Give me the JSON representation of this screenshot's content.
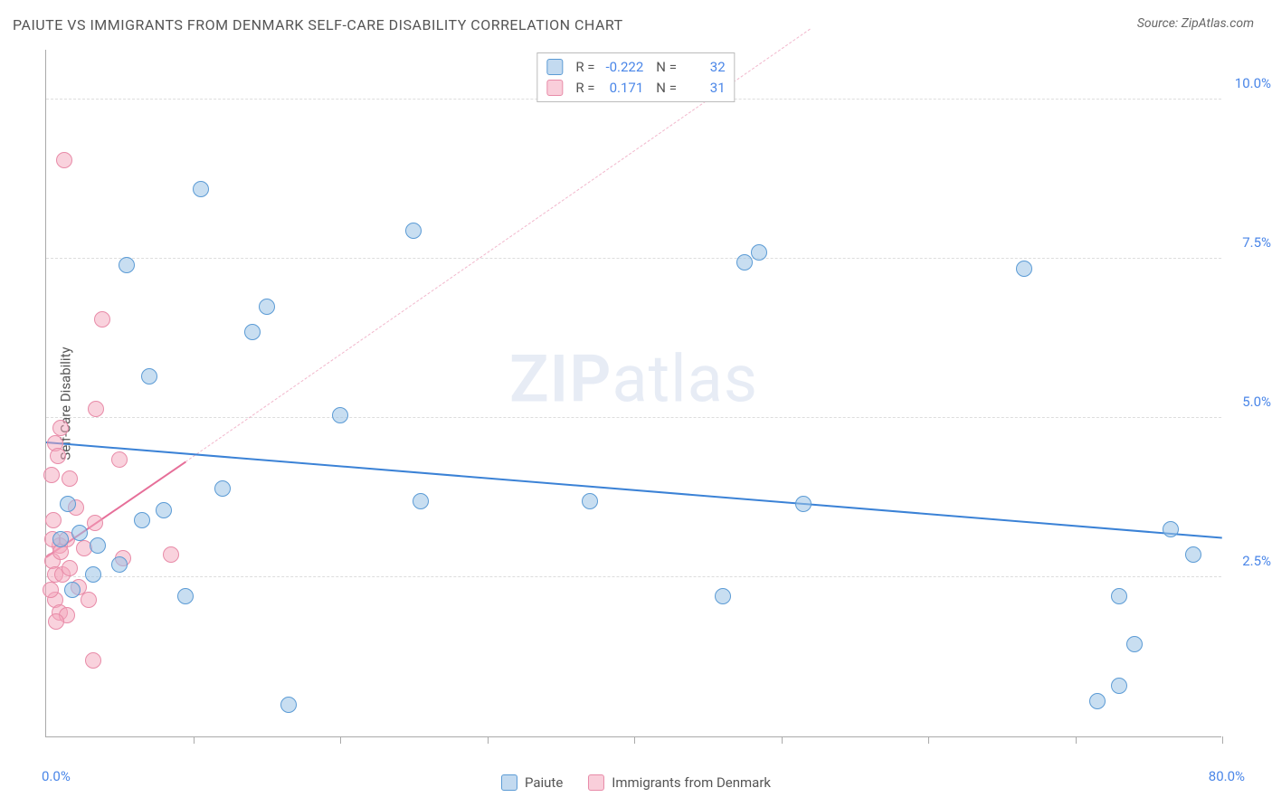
{
  "title": "PAIUTE VS IMMIGRANTS FROM DENMARK SELF-CARE DISABILITY CORRELATION CHART",
  "source": "Source: ZipAtlas.com",
  "y_axis_title": "Self-Care Disability",
  "watermark": {
    "bold": "ZIP",
    "rest": "atlas"
  },
  "chart": {
    "type": "scatter",
    "x_range": [
      0,
      80
    ],
    "y_range": [
      0,
      10.8
    ],
    "x_ticks": [
      0,
      10,
      20,
      30,
      40,
      50,
      60,
      70,
      80
    ],
    "x_min_label": "0.0%",
    "x_max_label": "80.0%",
    "y_gridlines": [
      2.5,
      5.0,
      7.5,
      10.0
    ],
    "y_tick_labels": [
      "2.5%",
      "5.0%",
      "7.5%",
      "10.0%"
    ],
    "grid_color": "#dddddd",
    "background_color": "#ffffff",
    "axis_color": "#aaaaaa",
    "marker_size": 18,
    "colors": {
      "blue_fill": "rgba(155,194,230,0.55)",
      "blue_stroke": "#5b9bd5",
      "pink_fill": "rgba(244,166,188,0.5)",
      "pink_stroke": "#e88ba8",
      "trend_blue": "#3b82d6",
      "trend_pink": "#e66f99",
      "tick_label": "#4a86e8"
    }
  },
  "series": [
    {
      "name": "Paiute",
      "color_key": "blue",
      "R": "-0.222",
      "N": "32",
      "trend": {
        "x1": 0,
        "y1": 4.6,
        "x2": 80,
        "y2": 3.1,
        "width": 2.5,
        "dashed": false
      },
      "points": [
        [
          10.5,
          8.6
        ],
        [
          25,
          7.95
        ],
        [
          47.5,
          7.45
        ],
        [
          48.5,
          7.6
        ],
        [
          66.5,
          7.35
        ],
        [
          5.5,
          7.4
        ],
        [
          15,
          6.75
        ],
        [
          14,
          6.35
        ],
        [
          7,
          5.65
        ],
        [
          20,
          5.05
        ],
        [
          12,
          3.9
        ],
        [
          8,
          3.55
        ],
        [
          25.5,
          3.7
        ],
        [
          37,
          3.7
        ],
        [
          51.5,
          3.65
        ],
        [
          1.5,
          3.65
        ],
        [
          1,
          3.1
        ],
        [
          3.5,
          3.0
        ],
        [
          5,
          2.7
        ],
        [
          9.5,
          2.2
        ],
        [
          46,
          2.2
        ],
        [
          73,
          2.2
        ],
        [
          78,
          2.85
        ],
        [
          76.5,
          3.25
        ],
        [
          74,
          1.45
        ],
        [
          73,
          0.8
        ],
        [
          71.5,
          0.55
        ],
        [
          16.5,
          0.5
        ],
        [
          3.2,
          2.55
        ],
        [
          2.3,
          3.2
        ],
        [
          1.8,
          2.3
        ],
        [
          6.5,
          3.4
        ]
      ]
    },
    {
      "name": "Immigrants from Denmark",
      "color_key": "pink",
      "R": "0.171",
      "N": "31",
      "trend": {
        "x1": 0,
        "y1": 2.8,
        "x2": 9.5,
        "y2": 4.3,
        "width": 2.5,
        "dashed": false
      },
      "trend_extrapolate": {
        "x1": 9.5,
        "y1": 4.3,
        "x2": 52,
        "y2": 11.1,
        "width": 1,
        "dashed": true
      },
      "points": [
        [
          1.2,
          9.05
        ],
        [
          3.8,
          6.55
        ],
        [
          3.4,
          5.15
        ],
        [
          1.0,
          4.85
        ],
        [
          0.6,
          4.6
        ],
        [
          0.8,
          4.4
        ],
        [
          5.0,
          4.35
        ],
        [
          5.2,
          2.8
        ],
        [
          8.5,
          2.85
        ],
        [
          3.3,
          3.35
        ],
        [
          1.6,
          4.05
        ],
        [
          2.0,
          3.6
        ],
        [
          0.9,
          3.0
        ],
        [
          0.4,
          3.1
        ],
        [
          0.4,
          2.75
        ],
        [
          0.6,
          2.55
        ],
        [
          1.1,
          2.55
        ],
        [
          1.6,
          2.65
        ],
        [
          2.2,
          2.35
        ],
        [
          2.9,
          2.15
        ],
        [
          0.6,
          2.15
        ],
        [
          0.3,
          2.3
        ],
        [
          0.5,
          3.4
        ],
        [
          0.9,
          1.95
        ],
        [
          1.4,
          1.9
        ],
        [
          3.2,
          1.2
        ],
        [
          0.7,
          1.8
        ],
        [
          2.6,
          2.95
        ],
        [
          1.0,
          2.9
        ],
        [
          1.4,
          3.1
        ],
        [
          0.35,
          4.1
        ]
      ]
    }
  ],
  "bottom_legend": [
    {
      "swatch": "blue",
      "label": "Paiute"
    },
    {
      "swatch": "pink",
      "label": "Immigrants from Denmark"
    }
  ],
  "stats_legend": {
    "rows": [
      {
        "swatch": "blue",
        "r_label": "R =",
        "r_val": "-0.222",
        "n_label": "N =",
        "n_val": "32"
      },
      {
        "swatch": "pink",
        "r_label": "R =",
        "r_val": "0.171",
        "n_label": "N =",
        "n_val": "31"
      }
    ]
  }
}
